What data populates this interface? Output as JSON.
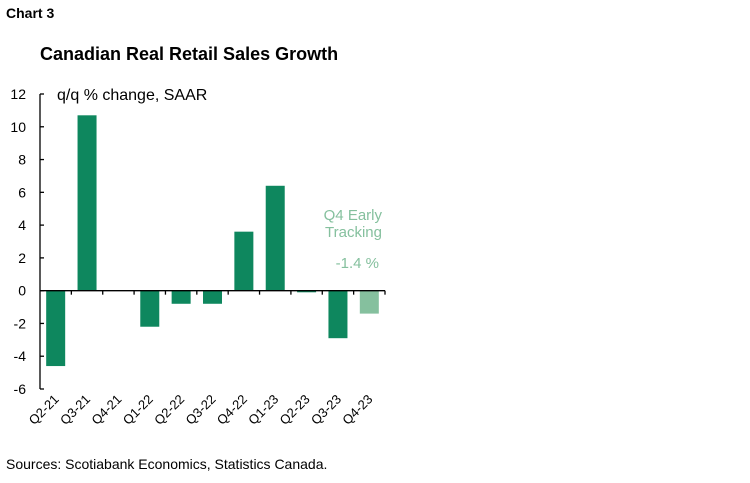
{
  "chart_label": "Chart 3",
  "chart_data": {
    "type": "bar",
    "title": "Canadian Real Retail Sales Growth",
    "ylabel": "q/q % change, SAAR",
    "xlabel": "",
    "categories": [
      "Q2-21",
      "Q3-21",
      "Q4-21",
      "Q1-22",
      "Q2-22",
      "Q3-22",
      "Q4-22",
      "Q1-23",
      "Q2-23",
      "Q3-23",
      "Q4-23"
    ],
    "values": [
      -4.6,
      10.7,
      0,
      -2.2,
      -0.8,
      -0.8,
      3.6,
      6.4,
      -0.1,
      -2.9,
      -1.4
    ],
    "highlight_index": 10,
    "ylim": [
      -6,
      12
    ],
    "yticks": [
      12,
      10,
      8,
      6,
      4,
      2,
      0,
      -2,
      -4,
      -6
    ],
    "grid": false,
    "annotation": {
      "line1": "Q4 Early",
      "line2": "Tracking",
      "value": "-1.4 %"
    },
    "colors": {
      "bar": "#0e875e",
      "highlight": "#85c09e",
      "annotation": "#85c09e"
    }
  },
  "source": "Sources: Scotiabank Economics, Statistics Canada."
}
